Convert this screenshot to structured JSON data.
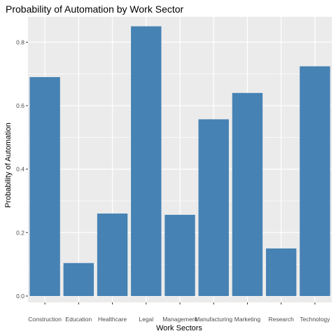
{
  "chart_data": {
    "type": "bar",
    "title": "Probability of Automation by Work Sector",
    "xlabel": "Work Sectors",
    "ylabel": "Probability of Automation",
    "categories": [
      "Construction",
      "Education",
      "Healthcare",
      "Legal",
      "Management",
      "Manufacturing",
      "Marketing",
      "Research",
      "Technology"
    ],
    "values": [
      0.69,
      0.104,
      0.26,
      0.85,
      0.256,
      0.557,
      0.64,
      0.15,
      0.724
    ],
    "ylim": [
      -0.02,
      0.88
    ],
    "yticks": [
      0.0,
      0.2,
      0.4,
      0.6,
      0.8
    ],
    "ytick_labels": [
      "0.0",
      "0.2",
      "0.4",
      "0.6",
      "0.8"
    ],
    "grid": true,
    "legend": "none",
    "bar_color": "#4682B4",
    "panel_background": "#EBEBEB",
    "grid_color": "#FFFFFF"
  }
}
